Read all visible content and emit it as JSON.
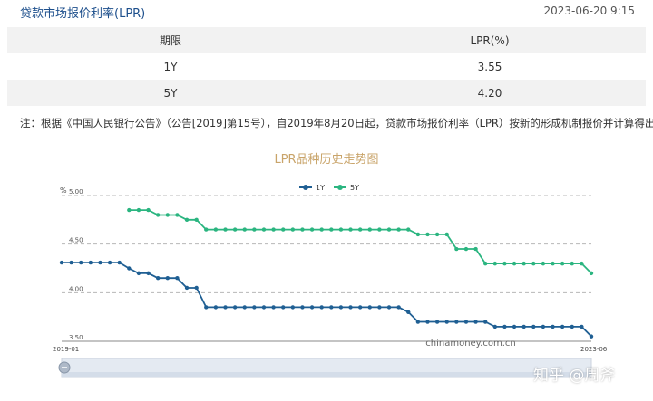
{
  "header": {
    "title": "贷款市场报价利率(LPR)",
    "datetime": "2023-06-20 9:15"
  },
  "table": {
    "columns": [
      "期限",
      "LPR(%)"
    ],
    "rows": [
      {
        "term": "1Y",
        "rate": "3.55"
      },
      {
        "term": "5Y",
        "rate": "4.20"
      }
    ]
  },
  "note": "注：根据《中国人民银行公告》（公告[2019]第15号），自2019年8月20日起，贷款市场报价利率（LPR）按新的形成机制报价并计算得出。",
  "watermark": "知乎 @周斧",
  "chart_data": {
    "type": "line",
    "title": "LPR品种历史走势图",
    "ylabel": "%",
    "ylim": [
      3.5,
      5.0
    ],
    "yticks": [
      "5.00",
      "4.50",
      "4.00",
      "3.50"
    ],
    "x_range_labels": [
      "2019-01",
      "2023-06"
    ],
    "grid": "horizontal dashed",
    "legend": "top-center",
    "source_label": "chinamoney.com.cn",
    "series": [
      {
        "name": "1Y",
        "color": "#1f5f93",
        "values": [
          4.31,
          4.31,
          4.31,
          4.31,
          4.31,
          4.31,
          4.31,
          4.25,
          4.2,
          4.2,
          4.15,
          4.15,
          4.15,
          4.05,
          4.05,
          3.85,
          3.85,
          3.85,
          3.85,
          3.85,
          3.85,
          3.85,
          3.85,
          3.85,
          3.85,
          3.85,
          3.85,
          3.85,
          3.85,
          3.85,
          3.85,
          3.85,
          3.85,
          3.85,
          3.85,
          3.85,
          3.8,
          3.7,
          3.7,
          3.7,
          3.7,
          3.7,
          3.7,
          3.7,
          3.7,
          3.65,
          3.65,
          3.65,
          3.65,
          3.65,
          3.65,
          3.65,
          3.65,
          3.65,
          3.65,
          3.55
        ]
      },
      {
        "name": "5Y",
        "color": "#2bb580",
        "values": [
          null,
          null,
          null,
          null,
          null,
          null,
          null,
          4.85,
          4.85,
          4.85,
          4.8,
          4.8,
          4.8,
          4.75,
          4.75,
          4.65,
          4.65,
          4.65,
          4.65,
          4.65,
          4.65,
          4.65,
          4.65,
          4.65,
          4.65,
          4.65,
          4.65,
          4.65,
          4.65,
          4.65,
          4.65,
          4.65,
          4.65,
          4.65,
          4.65,
          4.65,
          4.65,
          4.6,
          4.6,
          4.6,
          4.6,
          4.45,
          4.45,
          4.45,
          4.3,
          4.3,
          4.3,
          4.3,
          4.3,
          4.3,
          4.3,
          4.3,
          4.3,
          4.3,
          4.3,
          4.2
        ]
      }
    ]
  }
}
